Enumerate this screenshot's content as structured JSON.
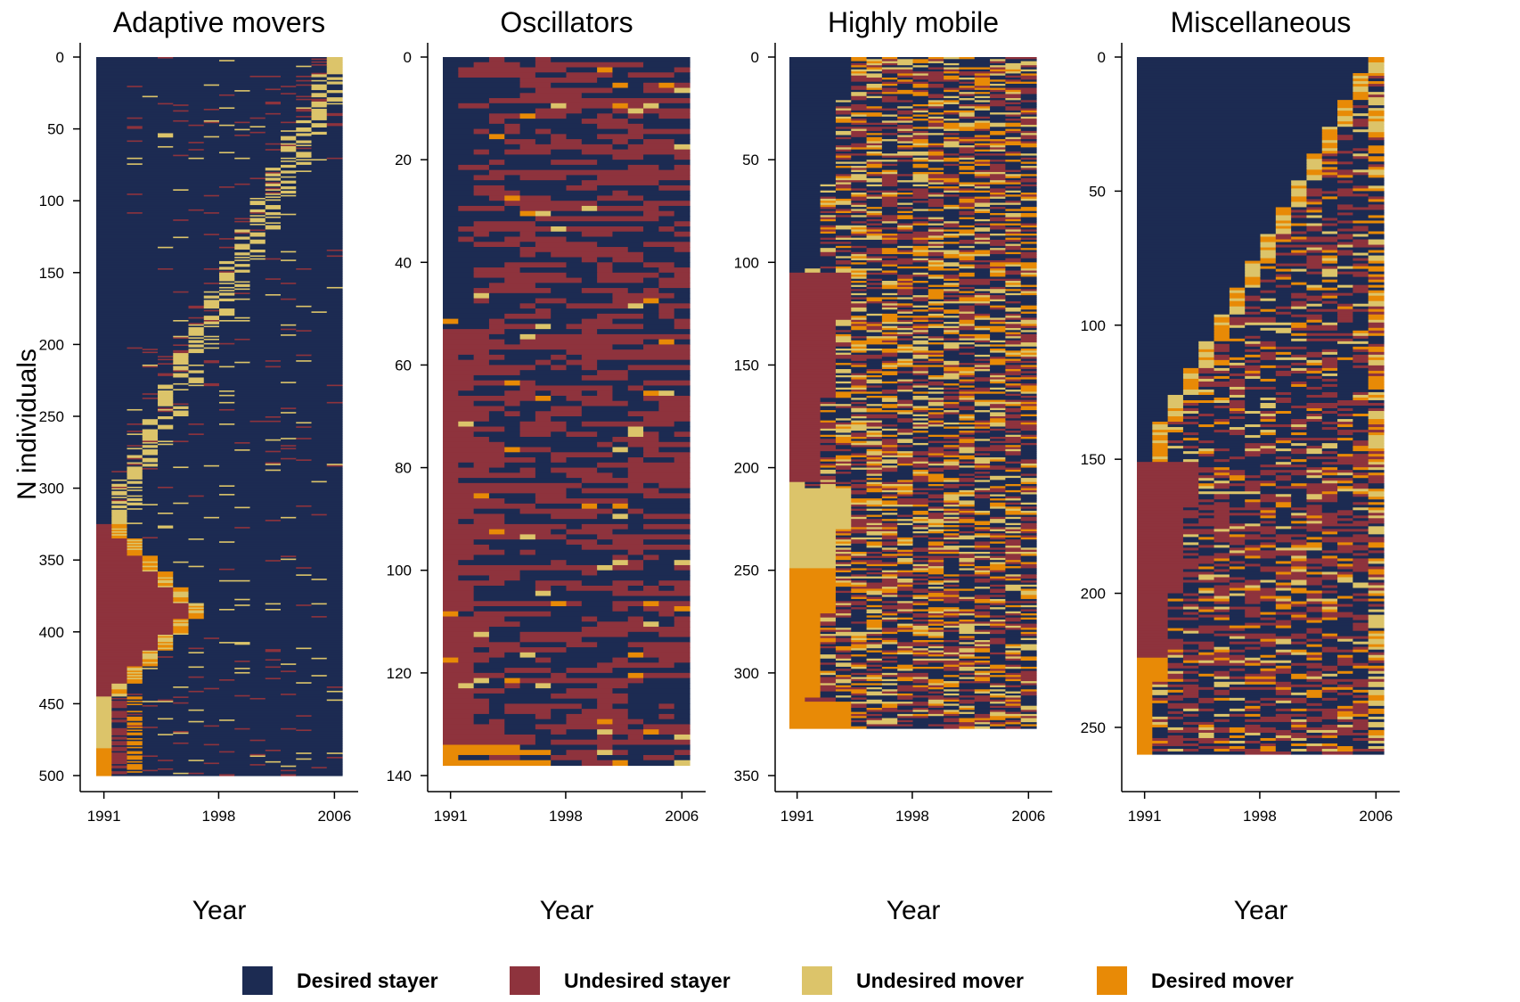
{
  "colors": {
    "desired_stayer": "#1C2B52",
    "undesired_stayer": "#8E333D",
    "undesired_mover": "#DCC46A",
    "desired_mover": "#E88A06"
  },
  "chart_data": [
    {
      "type": "heatmap",
      "title": "Adaptive movers",
      "xlabel": "Year",
      "ylabel": "N individuals",
      "x_ticks": [
        "1991",
        "1998",
        "2006"
      ],
      "xlim": [
        1991,
        2006
      ],
      "y_ticks": [
        0,
        50,
        100,
        150,
        200,
        250,
        300,
        350,
        400,
        450,
        500
      ],
      "ylim": [
        0,
        500
      ],
      "n_individuals": 500,
      "pattern": "adaptive"
    },
    {
      "type": "heatmap",
      "title": "Oscillators",
      "xlabel": "Year",
      "ylabel": "",
      "x_ticks": [
        "1991",
        "1998",
        "2006"
      ],
      "xlim": [
        1991,
        2006
      ],
      "y_ticks": [
        0,
        20,
        40,
        60,
        80,
        100,
        120,
        140
      ],
      "ylim": [
        0,
        140
      ],
      "n_individuals": 138,
      "pattern": "oscillators"
    },
    {
      "type": "heatmap",
      "title": "Highly mobile",
      "xlabel": "Year",
      "ylabel": "",
      "x_ticks": [
        "1991",
        "1998",
        "2006"
      ],
      "xlim": [
        1991,
        2006
      ],
      "y_ticks": [
        0,
        50,
        100,
        150,
        200,
        250,
        300,
        350
      ],
      "ylim": [
        0,
        350
      ],
      "n_individuals": 327,
      "pattern": "mobile"
    },
    {
      "type": "heatmap",
      "title": "Miscellaneous",
      "xlabel": "Year",
      "ylabel": "",
      "x_ticks": [
        "1991",
        "1998",
        "2006"
      ],
      "xlim": [
        1991,
        2006
      ],
      "y_ticks": [
        0,
        50,
        100,
        150,
        200,
        250
      ],
      "ylim": [
        0,
        260
      ],
      "n_individuals": 260,
      "pattern": "misc"
    }
  ],
  "legend": {
    "position": "bottom",
    "items": [
      {
        "key": "desired_stayer",
        "label": "Desired stayer"
      },
      {
        "key": "undesired_stayer",
        "label": "Undesired stayer"
      },
      {
        "key": "undesired_mover",
        "label": "Undesired mover"
      },
      {
        "key": "desired_mover",
        "label": "Desired mover"
      }
    ]
  }
}
